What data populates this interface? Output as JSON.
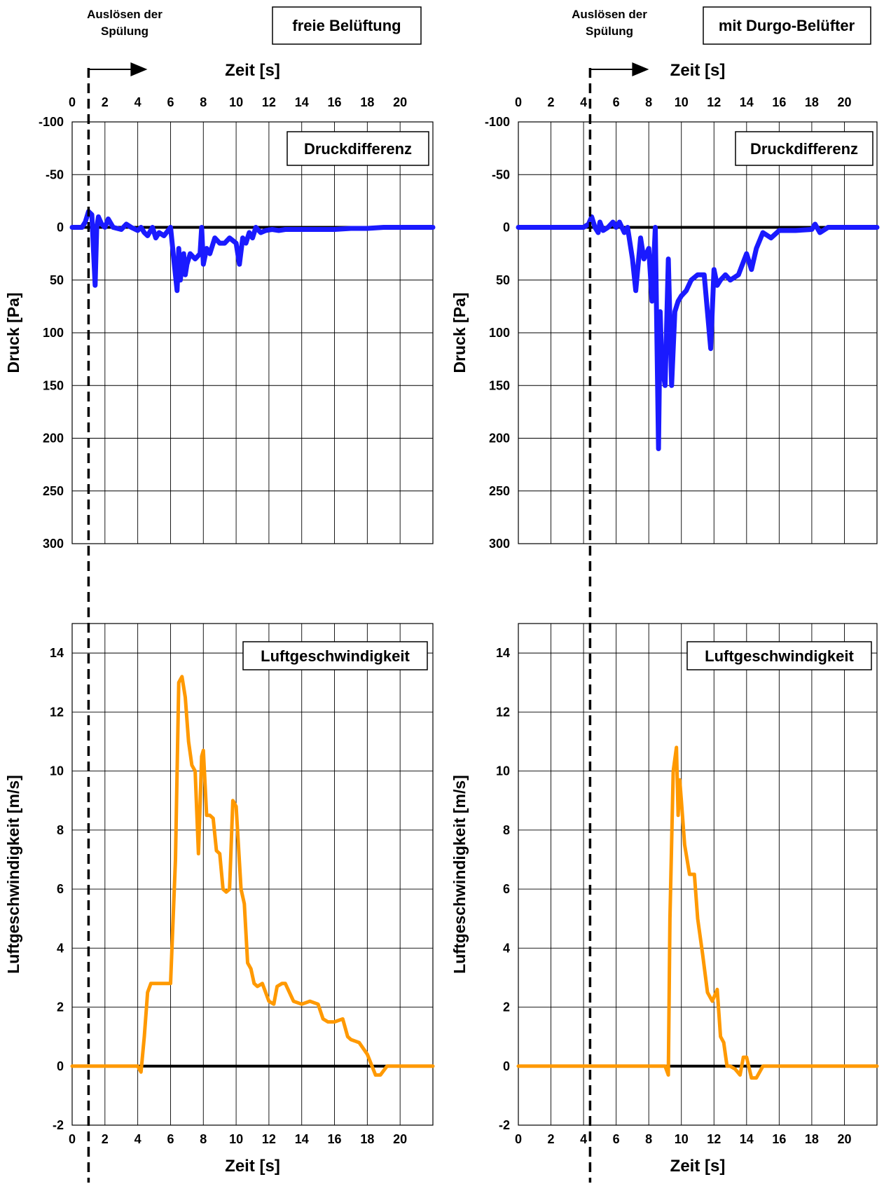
{
  "panels": [
    {
      "id": "left",
      "label_trigger_line1": "Auslösen der",
      "label_trigger_line2": "Spülung",
      "title_box": "freie Belüftung"
    },
    {
      "id": "right",
      "label_trigger_line1": "Auslösen der",
      "label_trigger_line2": "Spülung",
      "title_box": "mit Durgo-Belüfter"
    }
  ],
  "colors": {
    "pressure": "#1a1aff",
    "velocity": "#ff9900",
    "grid": "#000000",
    "marker": "#000000"
  },
  "chart_data": [
    {
      "id": "left-pressure",
      "type": "line",
      "title": "Druckdifferenz",
      "xlabel": "Zeit [s]",
      "ylabel": "Druck [Pa]",
      "xlim": [
        0,
        22
      ],
      "ylim": [
        -100,
        300
      ],
      "y_inverted": true,
      "xticks": [
        0,
        2,
        4,
        6,
        8,
        10,
        12,
        14,
        16,
        18,
        20
      ],
      "xtick_labels": [
        "0",
        "2",
        "4",
        "6",
        "8",
        "10",
        "12",
        "14",
        "16",
        "18",
        "20"
      ],
      "yticks": [
        -100,
        -50,
        0,
        50,
        100,
        150,
        200,
        250,
        300
      ],
      "ytick_labels": [
        "-100",
        "-50",
        "0",
        "50",
        "100",
        "150",
        "200",
        "250",
        "300"
      ],
      "trigger_x": 1.0,
      "series": [
        {
          "x": [
            0,
            0.6,
            0.8,
            1.0,
            1.2,
            1.4,
            1.5,
            1.6,
            1.8,
            2.0,
            2.2,
            2.5,
            3.0,
            3.3,
            3.6,
            4.0,
            4.2,
            4.4,
            4.6,
            4.9,
            5.1,
            5.3,
            5.6,
            6.0,
            6.2,
            6.4,
            6.5,
            6.6,
            6.7,
            6.8,
            6.9,
            7.0,
            7.2,
            7.5,
            7.8,
            7.9,
            8.0,
            8.2,
            8.4,
            8.7,
            9.0,
            9.3,
            9.6,
            10.0,
            10.2,
            10.4,
            10.6,
            10.8,
            11.0,
            11.2,
            11.5,
            11.8,
            12.2,
            12.6,
            13.0,
            14.0,
            15.0,
            16.0,
            17.0,
            18.0,
            19.0,
            20.0,
            21.0,
            22.0
          ],
          "y": [
            0,
            0,
            -5,
            -15,
            -12,
            55,
            0,
            -10,
            -3,
            0,
            -8,
            0,
            2,
            -3,
            0,
            3,
            0,
            5,
            8,
            0,
            10,
            5,
            8,
            0,
            30,
            60,
            20,
            50,
            35,
            25,
            45,
            35,
            25,
            30,
            25,
            0,
            35,
            20,
            25,
            10,
            15,
            15,
            10,
            15,
            35,
            10,
            15,
            5,
            10,
            0,
            5,
            3,
            2,
            3,
            2,
            2,
            2,
            2,
            1,
            1,
            0,
            0,
            0,
            0
          ]
        }
      ]
    },
    {
      "id": "right-pressure",
      "type": "line",
      "title": "Druckdifferenz",
      "xlabel": "Zeit [s]",
      "ylabel": "Druck [Pa]",
      "xlim": [
        0,
        22
      ],
      "ylim": [
        -100,
        300
      ],
      "y_inverted": true,
      "xticks": [
        0,
        2,
        4,
        6,
        8,
        10,
        12,
        14,
        16,
        18,
        20
      ],
      "xtick_labels": [
        "0",
        "2",
        "4",
        "6",
        "8",
        "10",
        "12",
        "14",
        "16",
        "18",
        "20"
      ],
      "yticks": [
        -100,
        -50,
        0,
        50,
        100,
        150,
        200,
        250,
        300
      ],
      "ytick_labels": [
        "-100",
        "-50",
        "0",
        "50",
        "100",
        "150",
        "200",
        "250",
        "300"
      ],
      "trigger_x": 4.4,
      "series": [
        {
          "x": [
            0,
            3.0,
            4.0,
            4.3,
            4.5,
            4.7,
            4.9,
            5.0,
            5.2,
            5.5,
            5.8,
            6.0,
            6.2,
            6.5,
            6.7,
            7.0,
            7.2,
            7.5,
            7.7,
            8.0,
            8.2,
            8.4,
            8.6,
            8.7,
            8.8,
            9.0,
            9.2,
            9.4,
            9.6,
            9.8,
            10.0,
            10.3,
            10.6,
            11.0,
            11.4,
            11.8,
            12.0,
            12.2,
            12.4,
            12.7,
            13.0,
            13.5,
            14.0,
            14.3,
            14.6,
            15.0,
            15.5,
            16.0,
            17.0,
            18.0,
            18.2,
            18.5,
            19.0,
            20.0,
            21.0,
            22.0
          ],
          "y": [
            0,
            0,
            0,
            -3,
            -10,
            0,
            5,
            -5,
            3,
            0,
            -5,
            0,
            -5,
            5,
            0,
            30,
            60,
            10,
            30,
            20,
            70,
            0,
            210,
            80,
            130,
            150,
            30,
            150,
            80,
            70,
            65,
            60,
            50,
            45,
            45,
            115,
            40,
            55,
            50,
            45,
            50,
            45,
            25,
            40,
            20,
            5,
            10,
            3,
            3,
            2,
            -3,
            5,
            0,
            0,
            0,
            0
          ]
        }
      ]
    },
    {
      "id": "left-velocity",
      "type": "line",
      "title": "Luftgeschwindigkeit",
      "xlabel": "Zeit [s]",
      "ylabel": "Luftgeschwindigkeit [m/s]",
      "xlim": [
        0,
        22
      ],
      "ylim": [
        -2,
        15
      ],
      "xticks": [
        0,
        2,
        4,
        6,
        8,
        10,
        12,
        14,
        16,
        18,
        20
      ],
      "xtick_labels": [
        "0",
        "2",
        "4",
        "6",
        "8",
        "10",
        "12",
        "14",
        "16",
        "18",
        "20"
      ],
      "yticks": [
        -2,
        0,
        2,
        4,
        6,
        8,
        10,
        12,
        14
      ],
      "ytick_labels": [
        "-2",
        "0",
        "2",
        "4",
        "6",
        "8",
        "10",
        "12",
        "14"
      ],
      "trigger_x": 1.0,
      "series": [
        {
          "x": [
            0,
            1.0,
            2.0,
            3.0,
            4.0,
            4.2,
            4.4,
            4.6,
            4.8,
            5.0,
            5.5,
            6.0,
            6.3,
            6.5,
            6.7,
            6.9,
            7.1,
            7.3,
            7.5,
            7.7,
            7.9,
            8.0,
            8.2,
            8.4,
            8.6,
            8.8,
            9.0,
            9.2,
            9.4,
            9.6,
            9.8,
            10.0,
            10.3,
            10.5,
            10.7,
            10.9,
            11.1,
            11.3,
            11.6,
            12.0,
            12.3,
            12.5,
            12.8,
            13.0,
            13.5,
            14.0,
            14.5,
            15.0,
            15.3,
            15.6,
            16.0,
            16.5,
            16.8,
            17.0,
            17.5,
            18.0,
            18.5,
            18.8,
            19.2,
            19.6,
            20.0,
            21.0,
            22.0
          ],
          "y": [
            0,
            0,
            0,
            0,
            0,
            -0.2,
            1.0,
            2.5,
            2.8,
            2.8,
            2.8,
            2.8,
            7.0,
            13.0,
            13.2,
            12.5,
            11.0,
            10.2,
            10.0,
            7.2,
            10.5,
            10.7,
            8.5,
            8.5,
            8.4,
            7.3,
            7.2,
            6.0,
            5.9,
            6.0,
            9.0,
            8.8,
            6.0,
            5.5,
            3.5,
            3.3,
            2.8,
            2.7,
            2.8,
            2.2,
            2.1,
            2.7,
            2.8,
            2.8,
            2.2,
            2.1,
            2.2,
            2.1,
            1.6,
            1.5,
            1.5,
            1.6,
            1.0,
            0.9,
            0.8,
            0.4,
            -0.3,
            -0.3,
            0,
            0,
            0,
            0,
            0
          ]
        }
      ]
    },
    {
      "id": "right-velocity",
      "type": "line",
      "title": "Luftgeschwindigkeit",
      "xlabel": "Zeit [s]",
      "ylabel": "Luftgeschwindigkeit [m/s]",
      "xlim": [
        0,
        22
      ],
      "ylim": [
        -2,
        15
      ],
      "xticks": [
        0,
        2,
        4,
        6,
        8,
        10,
        12,
        14,
        16,
        18,
        20
      ],
      "xtick_labels": [
        "0",
        "2",
        "4",
        "6",
        "8",
        "10",
        "12",
        "14",
        "16",
        "18",
        "20"
      ],
      "yticks": [
        -2,
        0,
        2,
        4,
        6,
        8,
        10,
        12,
        14
      ],
      "ytick_labels": [
        "-2",
        "0",
        "2",
        "4",
        "6",
        "8",
        "10",
        "12",
        "14"
      ],
      "trigger_x": 4.4,
      "series": [
        {
          "x": [
            0,
            2.0,
            4.0,
            6.0,
            8.0,
            9.0,
            9.2,
            9.3,
            9.5,
            9.7,
            9.8,
            9.9,
            10.0,
            10.2,
            10.5,
            10.8,
            11.0,
            11.3,
            11.6,
            11.9,
            12.2,
            12.4,
            12.6,
            12.8,
            13.0,
            13.3,
            13.6,
            13.8,
            14.0,
            14.3,
            14.6,
            15.0,
            15.5,
            16.0,
            18.0,
            20.0,
            22.0
          ],
          "y": [
            0,
            0,
            0,
            0,
            0,
            0,
            -0.3,
            5.0,
            10.0,
            10.8,
            8.5,
            9.7,
            9.0,
            7.5,
            6.5,
            6.5,
            5.0,
            3.8,
            2.5,
            2.2,
            2.6,
            1.0,
            0.8,
            0,
            0,
            -0.1,
            -0.3,
            0.3,
            0.3,
            -0.4,
            -0.4,
            0,
            0,
            0,
            0,
            0,
            0
          ]
        }
      ]
    }
  ]
}
